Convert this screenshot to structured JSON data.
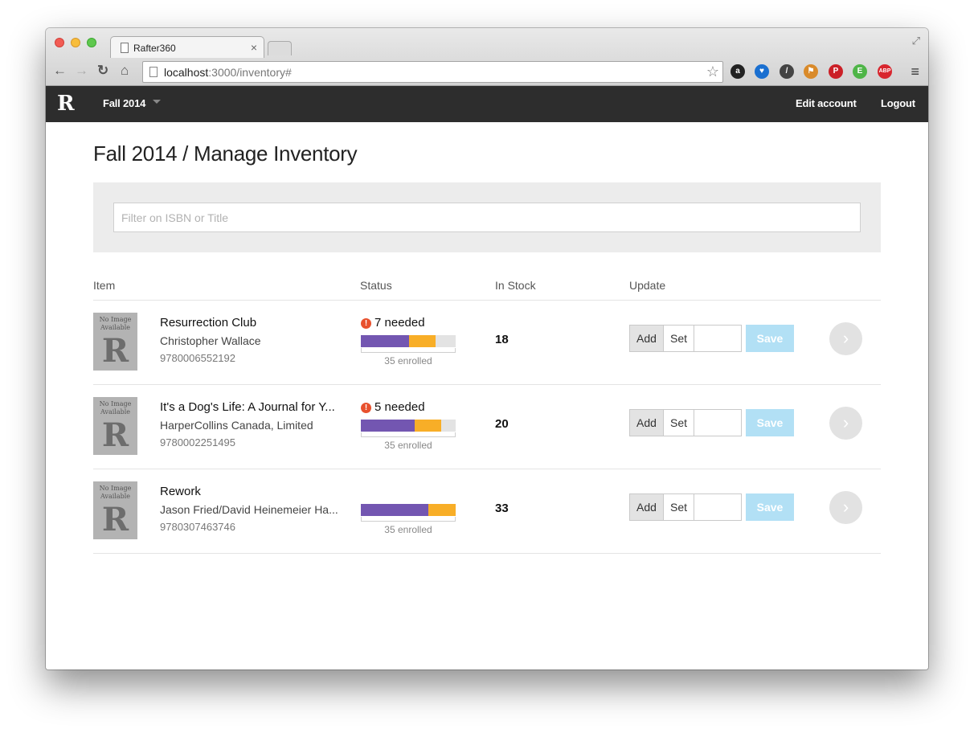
{
  "browser": {
    "tab_title": "Rafter360",
    "tab_close": "×",
    "url_host": "localhost",
    "url_rest": ":3000/inventory#",
    "back": "←",
    "forward": "→",
    "reload": "↻",
    "home": "⌂",
    "star": "☆",
    "menu": "≡",
    "fullscreen": "⤢",
    "extensions": [
      {
        "name": "amazon-icon",
        "glyph": "a",
        "color": "#222222"
      },
      {
        "name": "shield-heart-icon",
        "glyph": "♥",
        "color": "#1a6fd0"
      },
      {
        "name": "eyedropper-icon",
        "glyph": "/",
        "color": "#444444"
      },
      {
        "name": "bookmark-flag-icon",
        "glyph": "⚑",
        "color": "#d98a2a"
      },
      {
        "name": "pinterest-icon",
        "glyph": "P",
        "color": "#cb2027"
      },
      {
        "name": "evernote-icon",
        "glyph": "E",
        "color": "#4fb548"
      },
      {
        "name": "adblock-plus-icon",
        "glyph": "ABP",
        "color": "#d8262e"
      }
    ]
  },
  "app_nav": {
    "logo": "R",
    "term": "Fall 2014",
    "edit_account": "Edit account",
    "logout": "Logout"
  },
  "page": {
    "title": "Fall 2014 / Manage Inventory",
    "filter_placeholder": "Filter on ISBN or Title"
  },
  "table": {
    "headers": {
      "item": "Item",
      "status": "Status",
      "in_stock": "In Stock",
      "update": "Update"
    },
    "thumb_text": "No Image Available",
    "thumb_letter": "R",
    "add_label": "Add",
    "set_label": "Set",
    "save_label": "Save",
    "detail_glyph": "›",
    "rows": [
      {
        "title": "Resurrection Club",
        "author": "Christopher Wallace",
        "isbn": "9780006552192",
        "needed": "7 needed",
        "show_alert": true,
        "purple_fraction": 0.51,
        "orange_fraction": 0.28,
        "enrolled": "35 enrolled",
        "in_stock": "18"
      },
      {
        "title": "It's a Dog's Life: A Journal for Y...",
        "author": "HarperCollins Canada, Limited",
        "isbn": "9780002251495",
        "needed": "5 needed",
        "show_alert": true,
        "purple_fraction": 0.57,
        "orange_fraction": 0.28,
        "enrolled": "35 enrolled",
        "in_stock": "20"
      },
      {
        "title": "Rework",
        "author": "Jason Fried/David Heinemeier Ha...",
        "isbn": "9780307463746",
        "needed": "",
        "show_alert": false,
        "purple_fraction": 0.71,
        "orange_fraction": 0.29,
        "enrolled": "35 enrolled",
        "in_stock": "33"
      }
    ]
  },
  "colors": {
    "nav_bg": "#2d2d2d",
    "enrolled_purple": "#7356b1",
    "needed_orange": "#f8ae27",
    "alert_red": "#e8512e",
    "save_disabled": "#b2e0f5"
  }
}
